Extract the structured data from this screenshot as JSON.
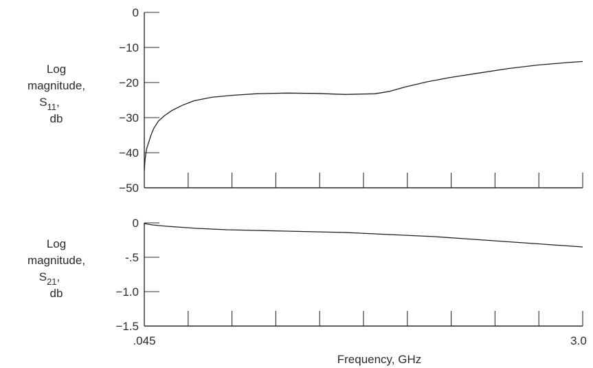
{
  "chart_data": [
    {
      "type": "line",
      "ylabel_lines": [
        "Log",
        "magnitude,",
        "S11,",
        "db"
      ],
      "ylabel_sub": {
        "base": "S",
        "sub": "11",
        "suffix": ","
      },
      "xlabel": "",
      "xlim": [
        0.045,
        3.0
      ],
      "ylim": [
        -50,
        0
      ],
      "yticks": [
        0,
        -10,
        -20,
        -30,
        -40,
        -50
      ],
      "ytick_labels": [
        "0",
        "−10",
        "−20",
        "−30",
        "−40",
        "−50"
      ],
      "x_minor_divisions": 10,
      "grid": false,
      "series": [
        {
          "x": [
            0.045,
            0.05,
            0.06,
            0.075,
            0.09,
            0.11,
            0.14,
            0.18,
            0.23,
            0.3,
            0.38,
            0.5,
            0.65,
            0.8,
            1.0,
            1.2,
            1.4,
            1.6,
            1.7,
            1.8,
            1.95,
            2.1,
            2.3,
            2.5,
            2.7,
            2.9,
            3.0
          ],
          "values": [
            -45,
            -42,
            -39,
            -37,
            -35,
            -33,
            -31,
            -29.5,
            -28,
            -26.5,
            -25.2,
            -24.2,
            -23.6,
            -23.2,
            -23.0,
            -23.1,
            -23.4,
            -23.2,
            -22.5,
            -21.3,
            -19.8,
            -18.6,
            -17.3,
            -16.0,
            -15.0,
            -14.3,
            -14.0
          ]
        }
      ]
    },
    {
      "type": "line",
      "ylabel_lines": [
        "Log",
        "magnitude,",
        "S21,",
        "db"
      ],
      "ylabel_sub": {
        "base": "S",
        "sub": "21",
        "suffix": ","
      },
      "xlabel": "Frequency, GHz",
      "xlim": [
        0.045,
        3.0
      ],
      "ylim": [
        -1.5,
        0
      ],
      "yticks": [
        0,
        -0.5,
        -1.0,
        -1.5
      ],
      "ytick_labels": [
        "0",
        "-.5",
        "−1.0",
        "−1.5"
      ],
      "xtick_labels": [
        ".045",
        "3.0"
      ],
      "x_minor_divisions": 10,
      "grid": false,
      "series": [
        {
          "x": [
            0.045,
            0.1,
            0.2,
            0.4,
            0.6,
            0.8,
            1.0,
            1.2,
            1.4,
            1.6,
            1.8,
            2.0,
            2.2,
            2.4,
            2.6,
            2.8,
            3.0
          ],
          "values": [
            -0.01,
            -0.03,
            -0.05,
            -0.08,
            -0.1,
            -0.11,
            -0.12,
            -0.13,
            -0.14,
            -0.16,
            -0.18,
            -0.2,
            -0.23,
            -0.26,
            -0.29,
            -0.32,
            -0.35
          ]
        }
      ]
    }
  ]
}
